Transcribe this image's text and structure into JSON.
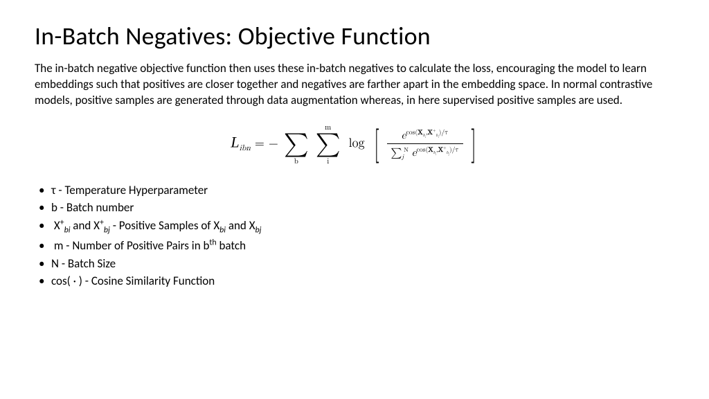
{
  "title": "In-Batch Negatives: Objective Function",
  "body": "The in-batch negative objective function then uses these in-batch negatives to calculate the loss, encouraging the model to learn embeddings such that positives are closer together and negatives are farther apart in the embedding space. In normal contrastive models, positive samples are generated through data augmentation whereas, in here supervised positive samples are used.",
  "formula": {
    "lhs_symbol": "L",
    "lhs_sub": "ibn",
    "eq": "=",
    "neg": "−",
    "sum1_lo": "b",
    "sum2_lo": "i",
    "sum2_hi": "m",
    "log": "log",
    "num_e": "e",
    "num_exp_prefix": "cos(",
    "X": "X",
    "b": "b",
    "i": "i",
    "j": "j",
    "comma": ",",
    "plus": "+",
    "close_tau": ")/τ",
    "den_sum_lo": "j",
    "den_sum_hi": "N",
    "den_e": "e"
  },
  "bullets": {
    "b1_tau": "τ - Temperature Hyperparameter",
    "b2_b": "b - Batch number",
    "b3_pre": "X",
    "b3_sup": "+",
    "b3_sub1": "bi",
    "b3_and": " and X",
    "b3_sub2": "bj",
    "b3_mid": " - Positive Samples of X",
    "b3_sub3": "bi",
    "b3_andX": " and X",
    "b3_sub4": "bj",
    "b4_pre": "m - Number of Positive Pairs in b",
    "b4_sup": "th",
    "b4_post": " batch",
    "b5": "N - Batch Size",
    "b6": "cos( · ) - Cosine Similarity Function"
  },
  "style": {
    "title_fontsize": 36,
    "body_fontsize": 17,
    "bullet_fontsize": 17,
    "formula_fontsize": 18,
    "text_color": "#000000",
    "background_color": "#ffffff"
  }
}
